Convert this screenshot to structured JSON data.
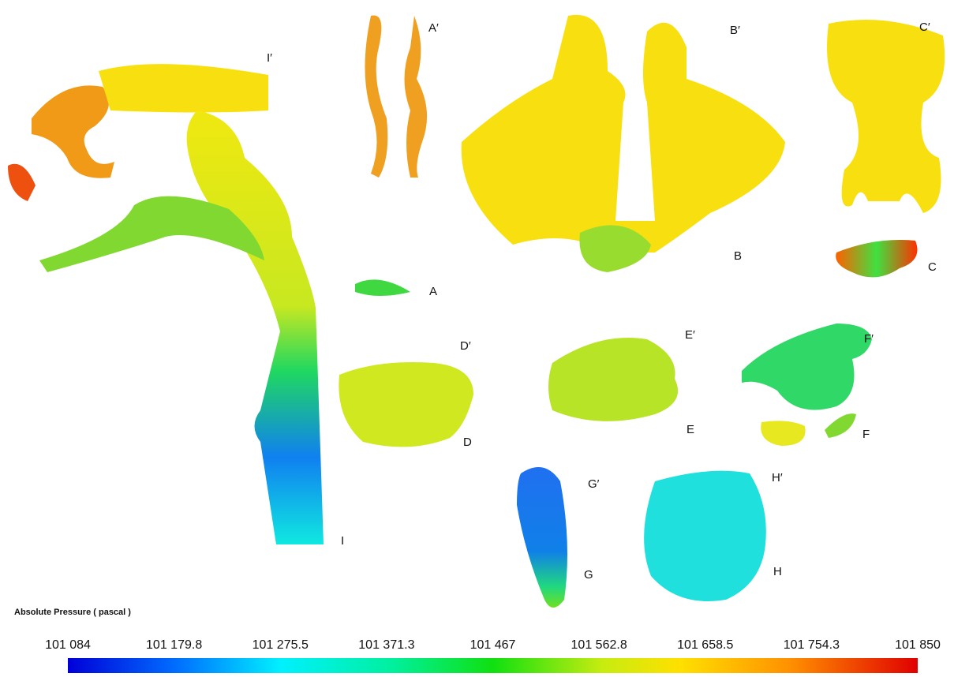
{
  "labels": [
    "A′",
    "I′",
    "B′",
    "C′",
    "B",
    "C",
    "A",
    "D′",
    "E′",
    "F′",
    "D",
    "E",
    "F",
    "G′",
    "H′",
    "G",
    "H",
    "I"
  ],
  "colorbar": {
    "title": "Absolute Pressure ( pascal )",
    "ticks": [
      "101 084",
      "101 179.8",
      "101 275.5",
      "101 371.3",
      "101 467",
      "101 562.8",
      "101 658.5",
      "101 754.3",
      "101 850"
    ]
  }
}
